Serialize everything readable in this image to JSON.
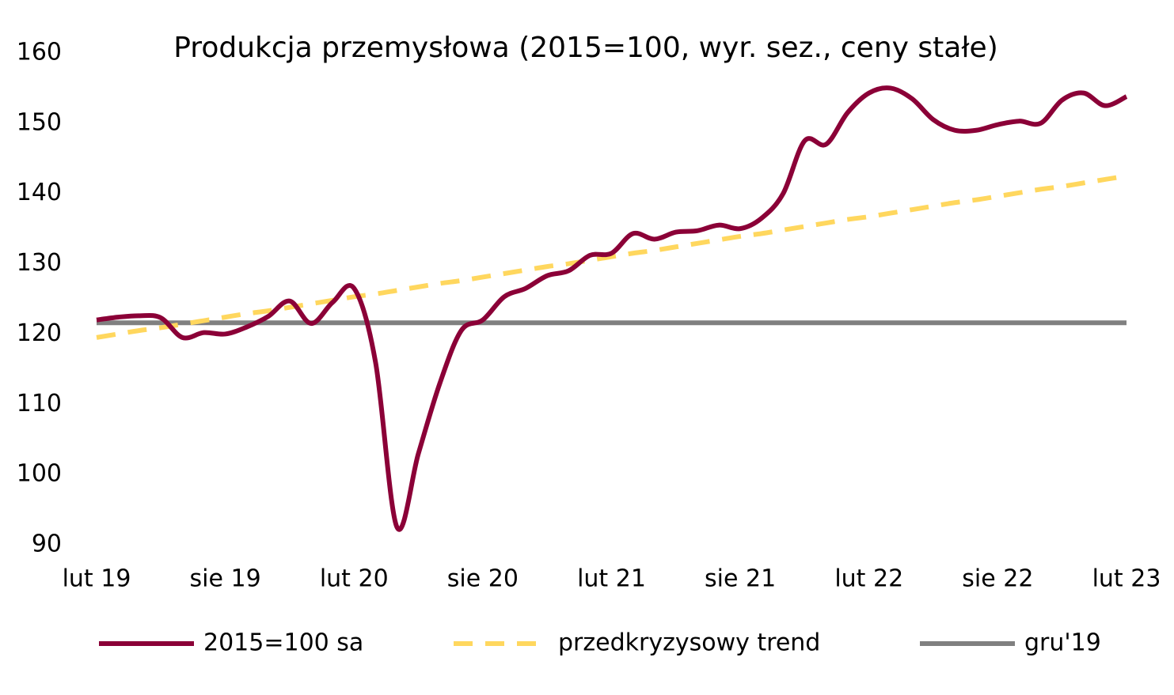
{
  "chart_data": {
    "type": "line",
    "title": "Produkcja przemysłowa (2015=100, wyr. sez., ceny stałe)",
    "categories": [
      "lut 19",
      null,
      null,
      null,
      null,
      null,
      "sie 19",
      null,
      null,
      null,
      null,
      null,
      "lut 20",
      null,
      null,
      null,
      null,
      null,
      "sie 20",
      null,
      null,
      null,
      null,
      null,
      "lut 21",
      null,
      null,
      null,
      null,
      null,
      "sie 21",
      null,
      null,
      null,
      null,
      null,
      "lut 22",
      null,
      null,
      null,
      null,
      null,
      "sie 22",
      null,
      null,
      null,
      null,
      null,
      "lut 23"
    ],
    "series": [
      {
        "name": "2015=100 sa",
        "color": "#8b0037",
        "style": "solid",
        "values": [
          122.0,
          122.4,
          122.6,
          122.3,
          119.5,
          120.2,
          120.0,
          121.0,
          122.5,
          124.7,
          121.5,
          124.5,
          126.5,
          116.0,
          92.5,
          103.0,
          113.0,
          120.5,
          122.0,
          125.3,
          126.5,
          128.3,
          129.0,
          131.2,
          131.5,
          134.3,
          133.5,
          134.5,
          134.7,
          135.5,
          135.0,
          136.5,
          140.0,
          147.5,
          147.0,
          151.5,
          154.3,
          155.0,
          153.5,
          150.5,
          149.0,
          149.0,
          149.8,
          150.3,
          150.0,
          153.3,
          154.3,
          152.5,
          153.8
        ]
      },
      {
        "name": "przedkryzysowy trend",
        "color": "#ffd75e",
        "style": "dashed",
        "values": [
          119.5,
          120.0,
          120.5,
          120.9,
          121.4,
          121.9,
          122.4,
          122.9,
          123.3,
          123.8,
          124.3,
          124.8,
          125.3,
          125.7,
          126.2,
          126.7,
          127.2,
          127.6,
          128.1,
          128.6,
          129.1,
          129.6,
          130.0,
          130.5,
          131.0,
          131.5,
          131.9,
          132.4,
          132.9,
          133.4,
          133.9,
          134.3,
          134.8,
          135.3,
          135.8,
          136.3,
          136.7,
          137.2,
          137.7,
          138.2,
          138.7,
          139.1,
          139.6,
          140.1,
          140.6,
          141.0,
          141.5,
          142.0,
          142.5
        ]
      },
      {
        "name": "gru'19",
        "color": "#808080",
        "style": "solid",
        "values": [
          121.6,
          121.6,
          121.6,
          121.6,
          121.6,
          121.6,
          121.6,
          121.6,
          121.6,
          121.6,
          121.6,
          121.6,
          121.6,
          121.6,
          121.6,
          121.6,
          121.6,
          121.6,
          121.6,
          121.6,
          121.6,
          121.6,
          121.6,
          121.6,
          121.6,
          121.6,
          121.6,
          121.6,
          121.6,
          121.6,
          121.6,
          121.6,
          121.6,
          121.6,
          121.6,
          121.6,
          121.6,
          121.6,
          121.6,
          121.6,
          121.6,
          121.6,
          121.6,
          121.6,
          121.6,
          121.6,
          121.6,
          121.6,
          121.6
        ]
      }
    ],
    "ylim": [
      90,
      160
    ],
    "yticks": [
      90,
      100,
      110,
      120,
      130,
      140,
      150,
      160
    ],
    "grid": false,
    "legend": "bottom"
  }
}
